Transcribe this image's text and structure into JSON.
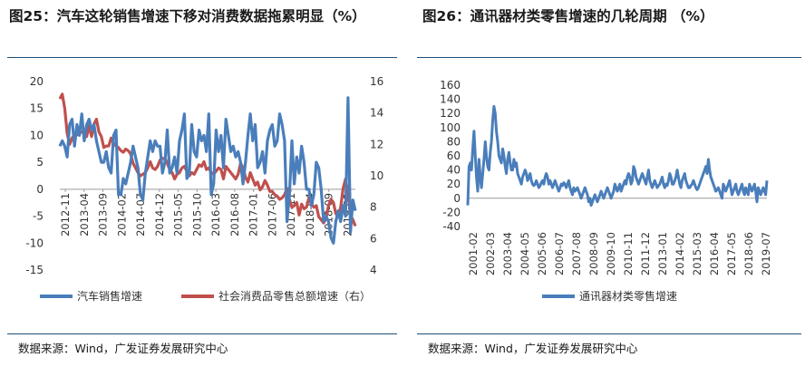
{
  "chart_data": [
    {
      "type": "line",
      "title": "图25：汽车这轮销售增速下移对消费数据拖累明显（%）",
      "y_left": {
        "ylim": [
          -15,
          20
        ],
        "ticks": [
          -15,
          -10,
          -5,
          0,
          5,
          10,
          15,
          20
        ]
      },
      "y_right": {
        "ylim": [
          4,
          16
        ],
        "ticks": [
          4,
          6,
          8,
          10,
          12,
          14,
          16
        ]
      },
      "x": {
        "range": [
          "2012-11",
          "2019-06"
        ],
        "tick_labels": [
          "2012-11",
          "2013-04",
          "2013-09",
          "2014-02",
          "2014-07",
          "2014-12",
          "2015-05",
          "2015-10",
          "2016-03",
          "2016-08",
          "2017-01",
          "2017-06",
          "2017-11",
          "2018-04",
          "2018-09",
          "2019-02"
        ]
      },
      "legend": {
        "position": "bottom"
      },
      "series": [
        {
          "name": "汽车销售增速",
          "axis": "left",
          "color": "#4a7ebb",
          "values": [
            8,
            9,
            8,
            6,
            12,
            13,
            8,
            12,
            10,
            14,
            9,
            12,
            13,
            11,
            12,
            9,
            7,
            5,
            5,
            7,
            4,
            3,
            10,
            11,
            -1,
            -1,
            2,
            1,
            3,
            5,
            8,
            6,
            4,
            -1,
            -2,
            3,
            6,
            9,
            7,
            9,
            8,
            8,
            3,
            5,
            11,
            3,
            4,
            6,
            3,
            9,
            11,
            14,
            2,
            3,
            12,
            7,
            6,
            11,
            9,
            10,
            7,
            14,
            -1,
            1,
            11,
            7,
            10,
            4,
            13,
            10,
            7,
            8,
            6,
            7,
            5,
            1,
            5,
            10,
            14,
            9,
            12,
            4,
            5,
            7,
            3,
            9,
            11,
            12,
            8,
            9,
            14,
            12,
            9,
            -6,
            -1,
            9,
            1,
            6,
            3,
            8,
            5,
            0,
            0,
            -3,
            -1,
            5,
            4,
            0,
            -6,
            -5,
            -6,
            -9,
            -10,
            -6,
            -4,
            -6,
            -3,
            -5,
            17,
            -8,
            -2,
            -4
          ]
        },
        {
          "name": "社会消费品零售总额增速（右）",
          "axis": "right",
          "color": "#c0504d",
          "values": [
            14.9,
            15.2,
            14.3,
            12.7,
            12.0,
            12.4,
            12.6,
            12.6,
            12.7,
            12.8,
            12.8,
            12.5,
            13.2,
            12.5,
            13.3,
            13.6,
            12.8,
            12.5,
            11.8,
            11.9,
            11.9,
            12.4,
            12.1,
            11.9,
            11.8,
            11.6,
            11.5,
            11.7,
            11.6,
            11.4,
            10.8,
            10.5,
            10.2,
            10.0,
            10.1,
            10.2,
            10.5,
            10.9,
            10.5,
            10.4,
            10.6,
            11.0,
            11.1,
            11.1,
            10.8,
            10.4,
            10.2,
            9.8,
            10.1,
            10.2,
            10.5,
            10.6,
            10.3,
            10.0,
            10.2,
            10.1,
            10.4,
            10.7,
            10.6,
            10.9,
            10.4,
            10.5,
            10.2,
            10.1,
            10.3,
            10.5,
            10.4,
            9.8,
            10.6,
            10.4,
            10.2,
            10.0,
            9.8,
            10.1,
            10.8,
            10.5,
            9.9,
            9.6,
            10.2,
            9.8,
            9.4,
            9.6,
            9.1,
            9.3,
            9.7,
            9.4,
            9.0,
            9.0,
            8.8,
            8.7,
            8.5,
            8.6,
            8.8,
            9.2,
            8.5,
            8.0,
            8.1,
            8.3,
            7.5,
            8.2,
            7.9,
            8.0,
            8.6,
            8.2,
            8.0,
            8.1,
            7.4,
            7.2,
            7.0,
            7.3,
            8.1,
            8.5,
            8.3,
            7.6,
            7.4,
            8.0,
            9.2,
            9.8,
            8.9,
            7.5,
            7.2,
            6.8
          ]
        }
      ]
    },
    {
      "type": "line",
      "title": "图26：通讯器材类零售增速的几轮周期 （%）",
      "ylim": [
        -40,
        160
      ],
      "y_ticks": [
        -40,
        -20,
        0,
        20,
        40,
        60,
        80,
        100,
        120,
        140,
        160
      ],
      "x": {
        "range": [
          "2001-02",
          "2019-07"
        ],
        "tick_labels": [
          "2001-02",
          "2002-03",
          "2003-04",
          "2004-05",
          "2005-06",
          "2006-07",
          "2007-08",
          "2008-09",
          "2009-10",
          "2010-11",
          "2011-12",
          "2013-01",
          "2014-02",
          "2015-03",
          "2016-04",
          "2017-05",
          "2018-06",
          "2019-07"
        ]
      },
      "legend": {
        "position": "bottom"
      },
      "series": [
        {
          "name": "通讯器材类零售增速",
          "color": "#4a7ebb",
          "values": [
            -10,
            45,
            50,
            40,
            70,
            95,
            60,
            30,
            10,
            55,
            30,
            15,
            35,
            55,
            80,
            60,
            45,
            40,
            65,
            80,
            110,
            130,
            120,
            95,
            80,
            60,
            55,
            50,
            70,
            60,
            45,
            35,
            55,
            65,
            50,
            40,
            40,
            55,
            45,
            50,
            35,
            30,
            25,
            20,
            30,
            35,
            40,
            35,
            25,
            30,
            35,
            25,
            20,
            18,
            20,
            25,
            20,
            15,
            18,
            22,
            25,
            20,
            30,
            35,
            30,
            20,
            25,
            20,
            15,
            20,
            25,
            20,
            15,
            10,
            15,
            20,
            18,
            22,
            20,
            15,
            20,
            25,
            15,
            10,
            5,
            15,
            10,
            12,
            15,
            10,
            5,
            0,
            5,
            10,
            15,
            10,
            5,
            -5,
            0,
            -10,
            -5,
            0,
            5,
            0,
            -5,
            0,
            5,
            10,
            5,
            0,
            5,
            10,
            15,
            10,
            5,
            0,
            5,
            10,
            20,
            15,
            10,
            15,
            20,
            10,
            15,
            20,
            25,
            20,
            30,
            35,
            30,
            20,
            25,
            45,
            40,
            30,
            25,
            20,
            25,
            30,
            35,
            30,
            25,
            20,
            30,
            40,
            25,
            20,
            15,
            20,
            25,
            20,
            15,
            18,
            20,
            25,
            30,
            20,
            15,
            20,
            18,
            25,
            35,
            30,
            20,
            20,
            25,
            30,
            40,
            30,
            20,
            15,
            25,
            30,
            35,
            25,
            20,
            15,
            15,
            18,
            20,
            25,
            20,
            15,
            12,
            15,
            20,
            25,
            30,
            35,
            40,
            45,
            35,
            55,
            40,
            30,
            25,
            20,
            15,
            10,
            12,
            15,
            10,
            5,
            0,
            20,
            15,
            10,
            15,
            20,
            25,
            15,
            5,
            10,
            15,
            20,
            10,
            5,
            10,
            15,
            20,
            10,
            5,
            15,
            10,
            5,
            20,
            15,
            10,
            15,
            20,
            10,
            -5,
            15,
            10,
            5,
            10,
            15,
            10,
            5,
            25
          ]
        }
      ]
    }
  ]
}
